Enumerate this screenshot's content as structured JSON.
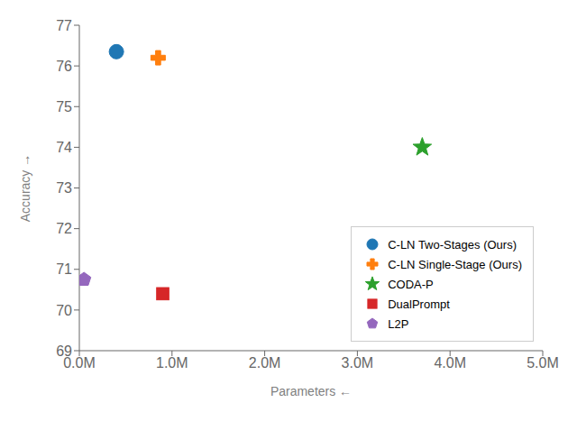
{
  "chart_data": {
    "type": "scatter",
    "xlabel": "Parameters ←",
    "ylabel": "Accuracy →",
    "xlim": [
      0.0,
      5.0
    ],
    "ylim": [
      69,
      77
    ],
    "xticks": [
      {
        "value": 0.0,
        "label": "0.0M"
      },
      {
        "value": 1.0,
        "label": "1.0M"
      },
      {
        "value": 2.0,
        "label": "2.0M"
      },
      {
        "value": 3.0,
        "label": "3.0M"
      },
      {
        "value": 4.0,
        "label": "4.0M"
      },
      {
        "value": 5.0,
        "label": "5.0M"
      }
    ],
    "yticks": [
      69,
      70,
      71,
      72,
      73,
      74,
      75,
      76,
      77
    ],
    "grid": false,
    "legend": "lower right",
    "series": [
      {
        "name": "C-LN Two-Stages (Ours)",
        "color": "#1f77b4",
        "marker": "circle",
        "x": [
          0.4
        ],
        "values": [
          76.35
        ]
      },
      {
        "name": "C-LN Single-Stage (Ours)",
        "color": "#ff7f0e",
        "marker": "plus",
        "x": [
          0.85
        ],
        "values": [
          76.2
        ]
      },
      {
        "name": "CODA-P",
        "color": "#2ca02c",
        "marker": "star",
        "x": [
          3.7
        ],
        "values": [
          74.0
        ]
      },
      {
        "name": "DualPrompt",
        "color": "#d62728",
        "marker": "square",
        "x": [
          0.9
        ],
        "values": [
          70.4
        ]
      },
      {
        "name": "L2P",
        "color": "#9467bd",
        "marker": "pentagon",
        "x": [
          0.05
        ],
        "values": [
          70.75
        ]
      }
    ]
  }
}
